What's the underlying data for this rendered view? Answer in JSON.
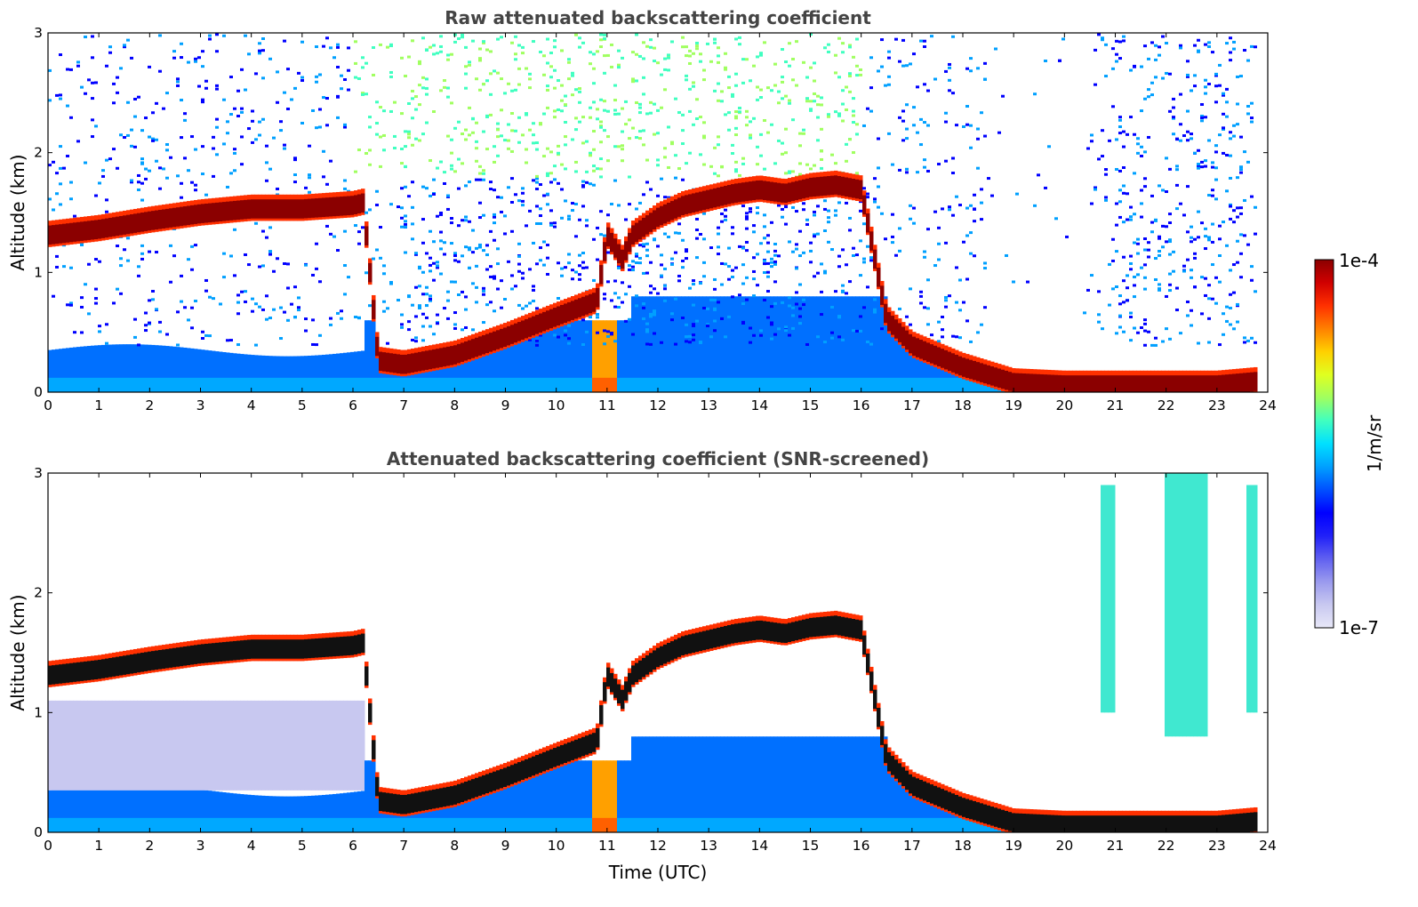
{
  "chart_data": [
    {
      "type": "heatmap",
      "title": "Raw attenuated backscattering coefficient",
      "xlabel": "",
      "ylabel": "Altitude (km)",
      "xlim": [
        0,
        24
      ],
      "ylim": [
        0,
        3
      ],
      "x_ticks": [
        0,
        1,
        2,
        3,
        4,
        5,
        6,
        7,
        8,
        9,
        10,
        11,
        12,
        13,
        14,
        15,
        16,
        17,
        18,
        19,
        20,
        21,
        22,
        23,
        24
      ],
      "y_ticks": [
        0,
        1,
        2,
        3
      ],
      "screened": false,
      "cloud_layer": {
        "description_values": "altitude of strong backscatter layer (km) vs time (UTC)",
        "x": [
          0,
          1,
          2,
          3,
          4,
          5,
          6,
          6.2,
          6.5,
          7,
          8,
          9,
          10,
          10.8,
          11,
          11.3,
          11.5,
          12,
          12.5,
          13,
          13.5,
          14,
          14.5,
          15,
          15.5,
          16,
          16.5,
          17,
          18,
          19,
          20,
          21,
          22,
          23,
          23.8
        ],
        "y": [
          1.3,
          1.35,
          1.42,
          1.48,
          1.52,
          1.52,
          1.55,
          1.57,
          0.25,
          0.22,
          0.3,
          0.45,
          0.62,
          0.75,
          1.3,
          1.1,
          1.3,
          1.45,
          1.55,
          1.6,
          1.65,
          1.68,
          1.65,
          1.7,
          1.72,
          1.68,
          0.6,
          0.38,
          0.2,
          0.07,
          0.05,
          0.05,
          0.05,
          0.05,
          0.08
        ]
      },
      "noise_region": "above 1.5 km, strongest 7–16 UTC"
    },
    {
      "type": "heatmap",
      "title": "Attenuated backscattering coefficient (SNR-screened)",
      "xlabel": "Time (UTC)",
      "ylabel": "Altitude (km)",
      "xlim": [
        0,
        24
      ],
      "ylim": [
        0,
        3
      ],
      "x_ticks": [
        0,
        1,
        2,
        3,
        4,
        5,
        6,
        7,
        8,
        9,
        10,
        11,
        12,
        13,
        14,
        15,
        16,
        17,
        18,
        19,
        20,
        21,
        22,
        23,
        24
      ],
      "y_ticks": [
        0,
        1,
        2,
        3
      ],
      "screened": true,
      "cloud_layer": {
        "description_values": "altitude of strong backscatter layer (km) vs time (UTC)",
        "x": [
          0,
          1,
          2,
          3,
          4,
          5,
          6,
          6.2,
          6.5,
          7,
          8,
          9,
          10,
          10.8,
          11,
          11.3,
          11.5,
          12,
          12.5,
          13,
          13.5,
          14,
          14.5,
          15,
          15.5,
          16,
          16.5,
          17,
          18,
          19,
          20,
          21,
          22,
          23,
          23.8
        ],
        "y": [
          1.3,
          1.35,
          1.42,
          1.48,
          1.52,
          1.52,
          1.55,
          1.57,
          0.25,
          0.22,
          0.3,
          0.45,
          0.62,
          0.75,
          1.3,
          1.1,
          1.3,
          1.45,
          1.55,
          1.6,
          1.65,
          1.68,
          1.65,
          1.7,
          1.72,
          1.68,
          0.6,
          0.38,
          0.2,
          0.07,
          0.05,
          0.05,
          0.05,
          0.05,
          0.08
        ]
      },
      "columns_of_signal": "near 21 and 22–22.8 UTC up to 3 km"
    }
  ],
  "colorbar": {
    "label": "1/m/sr",
    "max_label": "1e-4",
    "min_label": "1e-7",
    "scale": "log",
    "colormap": "jet",
    "colors": [
      "#e8e8f8",
      "#c8c8f0",
      "#9a9aee",
      "#6060f0",
      "#2020f8",
      "#0000ff",
      "#0050ff",
      "#00a0ff",
      "#00e0ff",
      "#40ffc0",
      "#a0ff60",
      "#e0ff20",
      "#ffd000",
      "#ff8000",
      "#ff3000",
      "#d00000",
      "#8b0000"
    ]
  }
}
